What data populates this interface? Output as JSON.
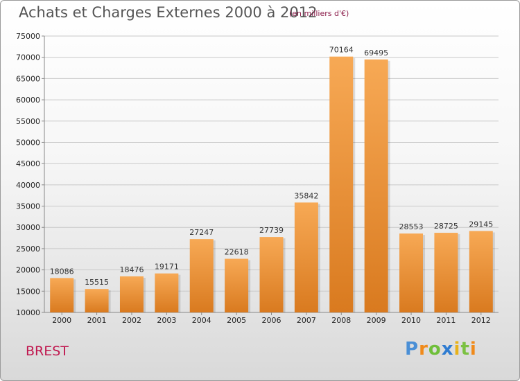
{
  "header": {
    "title": "Achats et Charges Externes 2000 à 2012",
    "subtitle": "(en milliers d'€)"
  },
  "footer": {
    "city": "BREST",
    "logo": [
      "P",
      "r",
      "o",
      "x",
      "i",
      "t",
      "i"
    ]
  },
  "colors": {
    "bar_top": "#f7a955",
    "bar_bottom": "#d97a1f",
    "grid": "#c8c8c8",
    "axis": "#888888"
  },
  "chart_data": {
    "type": "bar",
    "title": "Achats et Charges Externes 2000 à 2012",
    "subtitle": "(en milliers d'€)",
    "categories": [
      "2000",
      "2001",
      "2002",
      "2003",
      "2004",
      "2005",
      "2006",
      "2007",
      "2008",
      "2009",
      "2010",
      "2011",
      "2012"
    ],
    "values": [
      18086,
      15515,
      18476,
      19171,
      27247,
      22618,
      27739,
      35842,
      70164,
      69495,
      28553,
      28725,
      29145
    ],
    "ylim": [
      10000,
      75000
    ],
    "yticks": [
      10000,
      15000,
      20000,
      25000,
      30000,
      35000,
      40000,
      45000,
      50000,
      55000,
      60000,
      65000,
      70000,
      75000
    ],
    "grid": true,
    "data_labels": true
  }
}
